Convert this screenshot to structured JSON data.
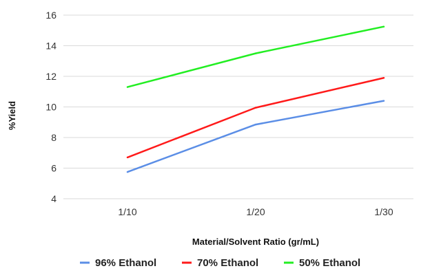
{
  "chart_data": {
    "type": "line",
    "title": "",
    "xlabel": "Material/Solvent Ratio (gr/mL)",
    "ylabel": "%Yield",
    "categories": [
      "1/10",
      "1/20",
      "1/30"
    ],
    "ylim": [
      4,
      16
    ],
    "yticks": [
      4,
      6,
      8,
      10,
      12,
      14,
      16
    ],
    "grid": "horizontal",
    "legend_position": "bottom",
    "series": [
      {
        "name": "96% Ethanol",
        "color": "#5b8ee6",
        "values": [
          5.75,
          8.85,
          10.4
        ]
      },
      {
        "name": "70% Ethanol",
        "color": "#ff1a1a",
        "values": [
          6.7,
          9.95,
          11.9
        ]
      },
      {
        "name": "50% Ethanol",
        "color": "#22ee22",
        "values": [
          11.3,
          13.5,
          15.25
        ]
      }
    ]
  }
}
